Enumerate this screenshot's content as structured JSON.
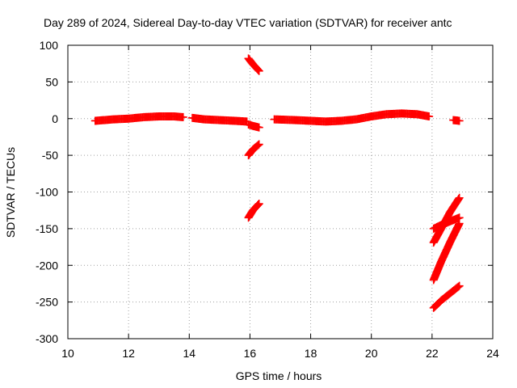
{
  "chart_data": {
    "type": "scatter",
    "title": "Day 289 of 2024, Sidereal Day-to-day VTEC variation (SDTVAR) for receiver antc",
    "xlabel": "GPS time / hours",
    "ylabel": "SDTVAR / TECUs",
    "xlim": [
      10,
      24
    ],
    "ylim": [
      -300,
      100
    ],
    "xticks": [
      10,
      12,
      14,
      16,
      18,
      20,
      22,
      24
    ],
    "yticks": [
      100,
      50,
      0,
      -50,
      -100,
      -150,
      -200,
      -250,
      -300
    ],
    "grid": true,
    "legend": "none",
    "marker": "plus",
    "color": "#ff0000",
    "series": [
      {
        "x": [
          10.9,
          11.5,
          12.0,
          12.5,
          13.0,
          13.5,
          13.8
        ],
        "y": [
          -3,
          -1,
          0,
          2,
          3,
          3,
          2
        ]
      },
      {
        "x": [
          14.1,
          14.5,
          15.0,
          15.5,
          15.9
        ],
        "y": [
          1,
          -1,
          -2,
          -3,
          -4
        ]
      },
      {
        "x": [
          15.95,
          16.1,
          16.3
        ],
        "y": [
          -8,
          -10,
          -12
        ]
      },
      {
        "x": [
          15.95,
          16.1,
          16.3
        ],
        "y": [
          82,
          74,
          65
        ]
      },
      {
        "x": [
          15.95,
          16.1,
          16.3
        ],
        "y": [
          -50,
          -42,
          -35
        ]
      },
      {
        "x": [
          15.95,
          16.1,
          16.3
        ],
        "y": [
          -135,
          -125,
          -116
        ]
      },
      {
        "x": [
          16.8,
          17.5,
          18.0,
          18.5,
          19.0,
          19.5,
          20.0,
          20.5,
          21.0,
          21.5,
          21.9
        ],
        "y": [
          -1,
          -2,
          -3,
          -4,
          -3,
          -1,
          3,
          6,
          7,
          6,
          3
        ]
      },
      {
        "x": [
          22.7,
          22.9
        ],
        "y": [
          -2,
          -3
        ]
      },
      {
        "x": [
          22.05,
          22.3,
          22.6,
          22.9
        ],
        "y": [
          -169,
          -150,
          -127,
          -108
        ]
      },
      {
        "x": [
          22.05,
          22.3,
          22.6,
          22.9
        ],
        "y": [
          -150,
          -145,
          -140,
          -135
        ]
      },
      {
        "x": [
          22.05,
          22.3,
          22.6,
          22.9
        ],
        "y": [
          -220,
          -195,
          -168,
          -143
        ]
      },
      {
        "x": [
          22.05,
          22.3,
          22.6,
          22.9
        ],
        "y": [
          -258,
          -248,
          -238,
          -228
        ]
      }
    ]
  }
}
